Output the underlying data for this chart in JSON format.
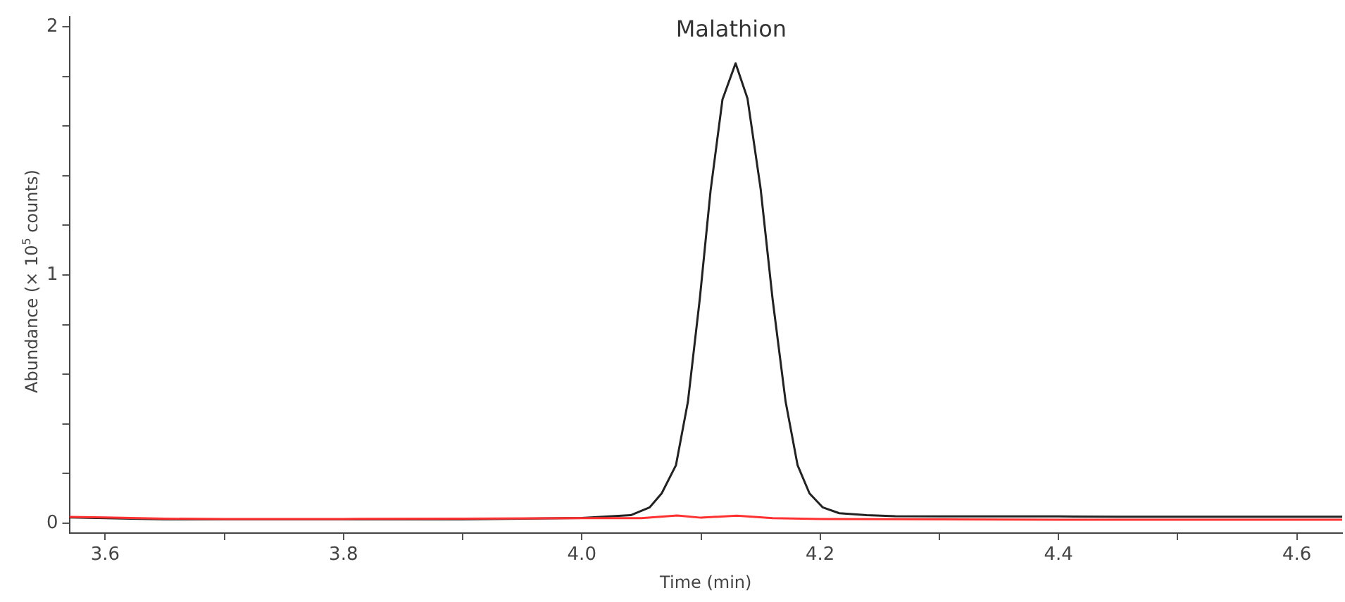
{
  "chart_data": {
    "type": "line",
    "title": "Malathion",
    "xlabel": "Time (min)",
    "ylabel": "Abundance (× 10$^{5}$ counts)",
    "xlim": [
      3.57,
      4.638
    ],
    "ylim": [
      -0.04,
      2.04
    ],
    "xticks": [
      3.6,
      {
        "value": 3.7,
        "label": null
      },
      3.8,
      {
        "value": 3.9,
        "label": null
      },
      {
        "value": 4,
        "label": "4.0"
      },
      {
        "value": 4.1,
        "label": null
      },
      4.2,
      {
        "value": 4.3,
        "label": null
      },
      4.4,
      {
        "value": 4.5,
        "label": null
      },
      4.6
    ],
    "yticks": [
      0,
      {
        "value": 0.2,
        "label": null
      },
      {
        "value": 0.4,
        "label": null
      },
      {
        "value": 0.6,
        "label": null
      },
      {
        "value": 0.8,
        "label": null
      },
      1,
      {
        "value": 1.2,
        "label": null
      },
      {
        "value": 1.4,
        "label": null
      },
      {
        "value": 1.6,
        "label": null
      },
      {
        "value": 1.8,
        "label": null
      },
      2
    ],
    "grid": false,
    "legend": false,
    "marker": "none",
    "line_style": "solid",
    "series": [
      {
        "color": "#222222",
        "x": [
          3.57,
          3.6,
          3.65,
          3.7,
          3.8,
          3.9,
          4.0,
          4.041,
          4.057,
          4.067,
          4.079,
          4.089,
          4.099,
          4.108,
          4.118,
          4.129,
          4.139,
          4.15,
          4.16,
          4.171,
          4.181,
          4.191,
          4.202,
          4.216,
          4.239,
          4.263,
          4.3,
          4.35,
          4.4,
          4.45,
          4.5,
          4.55,
          4.6,
          4.638
        ],
        "values": [
          0.023,
          0.02,
          0.015,
          0.015,
          0.015,
          0.015,
          0.021,
          0.032,
          0.064,
          0.12,
          0.234,
          0.489,
          0.905,
          1.339,
          1.707,
          1.853,
          1.711,
          1.348,
          0.905,
          0.489,
          0.234,
          0.12,
          0.064,
          0.04,
          0.032,
          0.028,
          0.027,
          0.027,
          0.027,
          0.026,
          0.026,
          0.026,
          0.026,
          0.026
        ]
      },
      {
        "color": "#ff3030",
        "x": [
          3.57,
          3.6,
          3.65,
          3.7,
          3.8,
          3.9,
          4.0,
          4.05,
          4.08,
          4.1,
          4.13,
          4.16,
          4.2,
          4.3,
          4.4,
          4.5,
          4.6,
          4.638
        ],
        "values": [
          0.025,
          0.023,
          0.018,
          0.017,
          0.017,
          0.018,
          0.02,
          0.02,
          0.031,
          0.022,
          0.03,
          0.02,
          0.017,
          0.015,
          0.014,
          0.014,
          0.014,
          0.014
        ]
      }
    ]
  }
}
